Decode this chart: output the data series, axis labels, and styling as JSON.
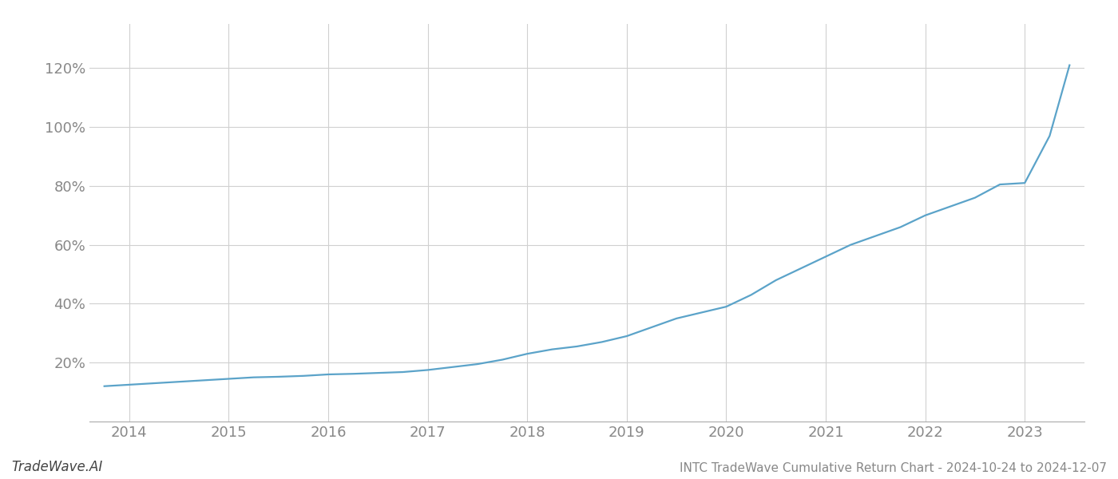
{
  "title": "INTC TradeWave Cumulative Return Chart - 2024-10-24 to 2024-12-07",
  "watermark": "TradeWave.AI",
  "line_color": "#5ba3c9",
  "background_color": "#ffffff",
  "grid_color": "#d0d0d0",
  "x_years": [
    2014,
    2015,
    2016,
    2017,
    2018,
    2019,
    2020,
    2021,
    2022,
    2023
  ],
  "x_values": [
    2013.75,
    2014.0,
    2014.25,
    2014.5,
    2014.75,
    2015.0,
    2015.25,
    2015.5,
    2015.75,
    2016.0,
    2016.25,
    2016.5,
    2016.75,
    2017.0,
    2017.25,
    2017.5,
    2017.75,
    2018.0,
    2018.25,
    2018.5,
    2018.75,
    2019.0,
    2019.25,
    2019.5,
    2019.75,
    2020.0,
    2020.25,
    2020.5,
    2020.75,
    2021.0,
    2021.25,
    2021.5,
    2021.75,
    2022.0,
    2022.25,
    2022.5,
    2022.75,
    2023.0,
    2023.25,
    2023.45
  ],
  "y_values": [
    12.0,
    12.5,
    13.0,
    13.5,
    14.0,
    14.5,
    15.0,
    15.2,
    15.5,
    16.0,
    16.2,
    16.5,
    16.8,
    17.5,
    18.5,
    19.5,
    21.0,
    23.0,
    24.5,
    25.5,
    27.0,
    29.0,
    32.0,
    35.0,
    37.0,
    39.0,
    43.0,
    48.0,
    52.0,
    56.0,
    60.0,
    63.0,
    66.0,
    70.0,
    73.0,
    76.0,
    80.5,
    81.0,
    97.0,
    121.0
  ],
  "yticks": [
    20,
    40,
    60,
    80,
    100,
    120
  ],
  "ylim": [
    0,
    135
  ],
  "xlim": [
    2013.6,
    2023.6
  ],
  "tick_label_color": "#888888",
  "title_color": "#888888",
  "watermark_color": "#444444",
  "line_width": 1.6,
  "spine_color": "#aaaaaa"
}
